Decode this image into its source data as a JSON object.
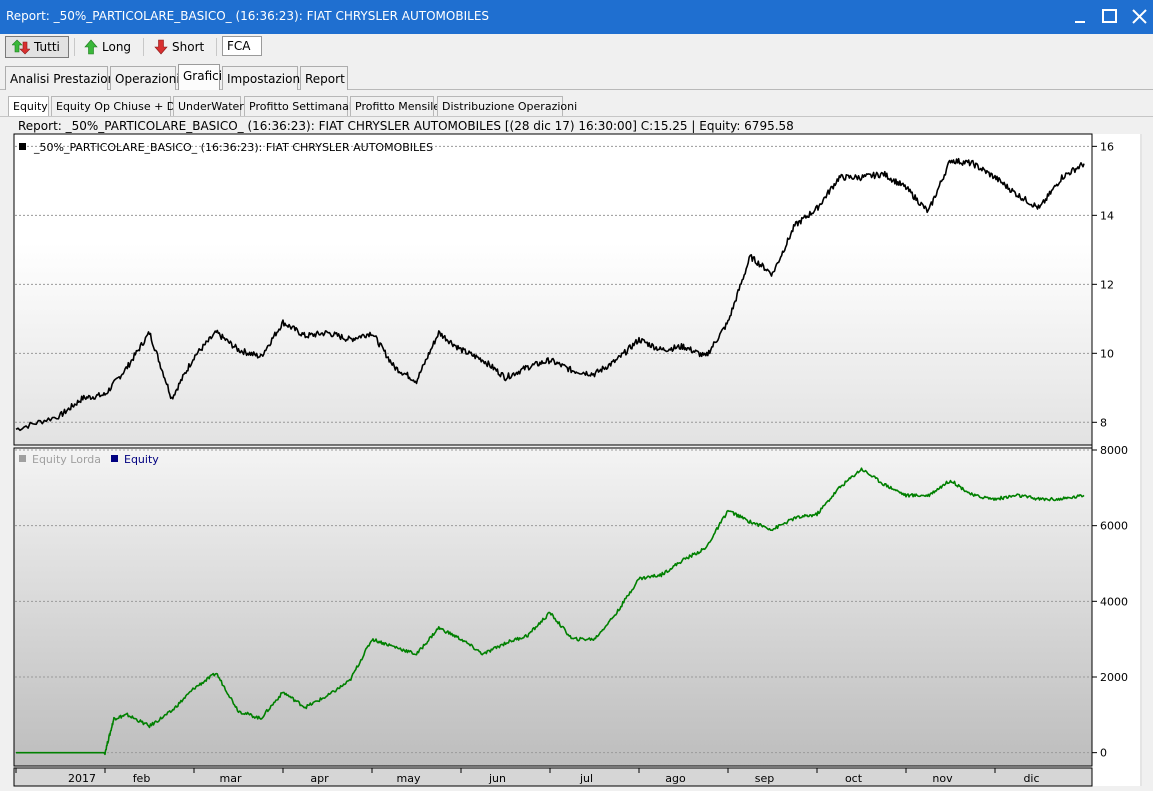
{
  "window": {
    "title": "Report: _50%_PARTICOLARE_BASICO_ (16:36:23): FIAT CHRYSLER AUTOMOBILES"
  },
  "toolbar": {
    "all_label": "Tutti",
    "long_label": "Long",
    "short_label": "Short",
    "symbol": "FCA"
  },
  "main_tabs": [
    "Analisi Prestazioni",
    "Operazioni",
    "Grafici",
    "Impostazioni",
    "Report"
  ],
  "main_tab_active": "Grafici",
  "sub_tabs": [
    "Equity",
    "Equity Op Chiuse + DD",
    "UnderWater",
    "Profitto Settimanale",
    "Profitto Mensile",
    "Distribuzione Operazioni"
  ],
  "sub_tab_active": "Equity",
  "info_line": "Report: _50%_PARTICOLARE_BASICO_ (16:36:23): FIAT CHRYSLER AUTOMOBILES  [(28 dic 17) 16:30:00]  C:15.25   |   Equity: 6795.58",
  "colors": {
    "titlebar": "#1f6fd0",
    "price_series": "#000000",
    "equity_series": "#008000",
    "equity_lorda_legend": "#a0a0a0",
    "equity_legend": "#000080"
  },
  "chart_data": [
    {
      "type": "line",
      "title": "",
      "legend": [
        {
          "name": "_50%_PARTICOLARE_BASICO_ (16:36:23): FIAT CHRYSLER AUTOMOBILES",
          "color": "#000000"
        }
      ],
      "ylim": [
        7.4,
        16.3
      ],
      "yticks": [
        8,
        10,
        12,
        14,
        16
      ],
      "grid": true,
      "legend_position": "top-left",
      "series": [
        {
          "name": "_50%_PARTICOLARE_BASICO_ (16:36:23): FIAT CHRYSLER AUTOMOBILES",
          "x": [
            0,
            0.5,
            0.75,
            1,
            1.25,
            1.5,
            1.75,
            2,
            2.25,
            2.5,
            2.75,
            3,
            3.25,
            3.5,
            3.75,
            4,
            4.25,
            4.5,
            4.75,
            5,
            5.25,
            5.5,
            5.75,
            6,
            6.25,
            6.5,
            6.75,
            7,
            7.25,
            7.5,
            7.75,
            8,
            8.25,
            8.5,
            8.75,
            9,
            9.25,
            9.5,
            9.75,
            10,
            10.25,
            10.5,
            10.75,
            11,
            11.25,
            11.5,
            11.75,
            12
          ],
          "y": [
            7.8,
            8.2,
            8.7,
            8.8,
            9.6,
            10.6,
            8.7,
            9.9,
            10.6,
            10.1,
            9.9,
            10.9,
            10.5,
            10.6,
            10.4,
            10.6,
            9.6,
            9.2,
            10.6,
            10.1,
            9.8,
            9.3,
            9.6,
            9.8,
            9.5,
            9.4,
            9.8,
            10.4,
            10.1,
            10.2,
            9.9,
            10.9,
            12.8,
            12.3,
            13.7,
            14.2,
            15.1,
            15.1,
            15.2,
            14.8,
            14.1,
            15.6,
            15.5,
            15.1,
            14.6,
            14.2,
            15.1,
            15.5
          ]
        }
      ]
    },
    {
      "type": "line",
      "title": "",
      "legend": [
        {
          "name": "Equity Lorda",
          "color": "#a0a0a0"
        },
        {
          "name": "Equity",
          "color": "#000080"
        }
      ],
      "ylim": [
        -300,
        8000
      ],
      "yticks": [
        0,
        2000,
        4000,
        6000,
        8000
      ],
      "grid": true,
      "legend_position": "top-left",
      "x_ticks": [
        "2017",
        "feb",
        "mar",
        "apr",
        "may",
        "jun",
        "jul",
        "ago",
        "sep",
        "oct",
        "nov",
        "dic"
      ],
      "series": [
        {
          "name": "Equity",
          "x": [
            0,
            0.75,
            1,
            1.1,
            1.25,
            1.5,
            1.75,
            2,
            2.25,
            2.5,
            2.75,
            3,
            3.25,
            3.5,
            3.75,
            4,
            4.25,
            4.5,
            4.75,
            5,
            5.25,
            5.5,
            5.75,
            6,
            6.25,
            6.5,
            6.75,
            7,
            7.25,
            7.5,
            7.75,
            8,
            8.25,
            8.5,
            8.75,
            9,
            9.25,
            9.5,
            9.75,
            10,
            10.25,
            10.5,
            10.75,
            11,
            11.25,
            11.5,
            11.75,
            12
          ],
          "y": [
            0,
            0,
            0,
            900,
            1000,
            700,
            1100,
            1700,
            2100,
            1100,
            900,
            1600,
            1200,
            1500,
            1900,
            3000,
            2800,
            2600,
            3300,
            3000,
            2600,
            2900,
            3100,
            3700,
            3000,
            3000,
            3700,
            4600,
            4700,
            5100,
            5400,
            6400,
            6100,
            5900,
            6200,
            6300,
            7000,
            7500,
            7100,
            6800,
            6800,
            7200,
            6800,
            6700,
            6800,
            6700,
            6700,
            6800
          ]
        }
      ]
    }
  ]
}
